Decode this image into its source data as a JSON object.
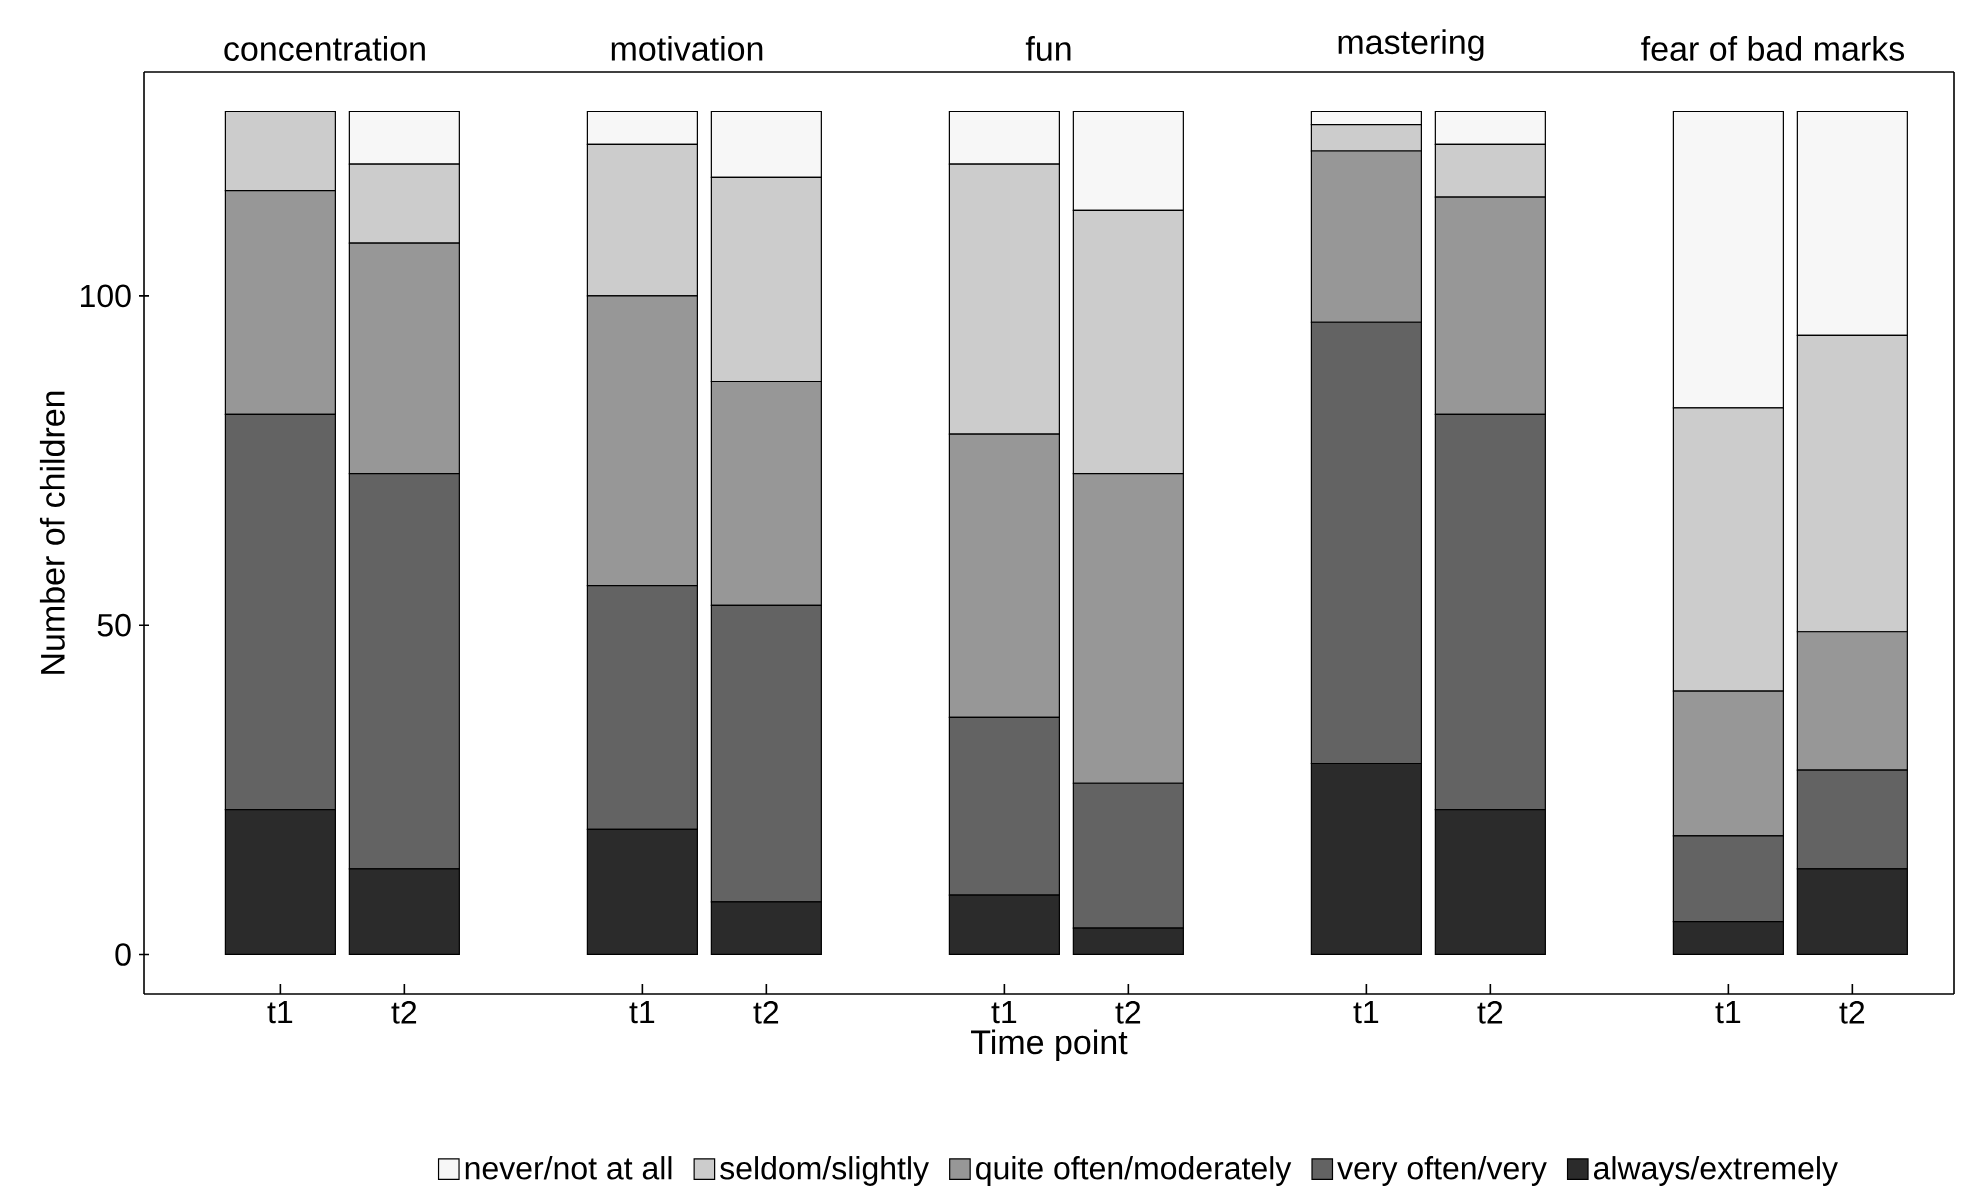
{
  "chart_data": [
    {
      "type": "bar",
      "stacked": true,
      "title": "concentration",
      "ylabel": "Number of children",
      "categories": [
        "t1",
        "t2"
      ],
      "ylim": [
        -6,
        134
      ],
      "yticks": [
        0,
        50,
        100
      ],
      "legend": "bottom",
      "series": [
        {
          "name": "always/extremely",
          "color": "#2b2b2b",
          "values": [
            22,
            13
          ]
        },
        {
          "name": "very often/very",
          "color": "#636363",
          "values": [
            60,
            60
          ]
        },
        {
          "name": "quite often/moderately",
          "color": "#979797",
          "values": [
            34,
            35
          ]
        },
        {
          "name": "seldom/slightly",
          "color": "#cccccc",
          "values": [
            12,
            12
          ]
        },
        {
          "name": "never/not at all",
          "color": "#f7f7f7",
          "values": [
            0,
            8
          ]
        }
      ]
    },
    {
      "type": "bar",
      "stacked": true,
      "title": "motivation",
      "categories": [
        "t1",
        "t2"
      ],
      "ylim": [
        -6,
        134
      ],
      "tick_labels": "x",
      "series": [
        {
          "color": "#2b2b2b",
          "values": [
            19,
            8
          ]
        },
        {
          "color": "#636363",
          "values": [
            37,
            45
          ]
        },
        {
          "color": "#979797",
          "values": [
            44,
            34
          ]
        },
        {
          "color": "#cccccc",
          "values": [
            23,
            31
          ]
        },
        {
          "color": "#f7f7f7",
          "values": [
            5,
            10
          ]
        }
      ]
    },
    {
      "type": "bar",
      "stacked": true,
      "title": "fun",
      "xlabel": "Time point",
      "categories": [
        "t1",
        "t2"
      ],
      "ylim": [
        -6,
        134
      ],
      "tick_labels": "x",
      "series": [
        {
          "color": "#2b2b2b",
          "values": [
            9,
            4
          ]
        },
        {
          "color": "#636363",
          "values": [
            27,
            22
          ]
        },
        {
          "color": "#979797",
          "values": [
            43,
            47
          ]
        },
        {
          "color": "#cccccc",
          "values": [
            41,
            40
          ]
        },
        {
          "color": "#f7f7f7",
          "values": [
            8,
            15
          ]
        }
      ]
    },
    {
      "type": "bar",
      "stacked": true,
      "title": "mastering",
      "categories": [
        "t1",
        "t2"
      ],
      "ylim": [
        -6,
        134
      ],
      "tick_labels": "x",
      "series": [
        {
          "color": "#2b2b2b",
          "values": [
            29,
            22
          ]
        },
        {
          "color": "#636363",
          "values": [
            67,
            60
          ]
        },
        {
          "color": "#979797",
          "values": [
            26,
            33
          ]
        },
        {
          "color": "#cccccc",
          "values": [
            4,
            8
          ]
        },
        {
          "color": "#f7f7f7",
          "values": [
            2,
            5
          ]
        }
      ]
    },
    {
      "type": "bar",
      "stacked": true,
      "title": "fear of bad marks",
      "categories": [
        "t1",
        "t2"
      ],
      "ylim": [
        -6,
        134
      ],
      "tick_labels": "x",
      "series": [
        {
          "color": "#2b2b2b",
          "values": [
            5,
            13
          ]
        },
        {
          "color": "#636363",
          "values": [
            13,
            15
          ]
        },
        {
          "color": "#979797",
          "values": [
            22,
            21
          ]
        },
        {
          "color": "#cccccc",
          "values": [
            43,
            45
          ]
        },
        {
          "color": "#f7f7f7",
          "values": [
            45,
            34
          ]
        }
      ]
    }
  ]
}
